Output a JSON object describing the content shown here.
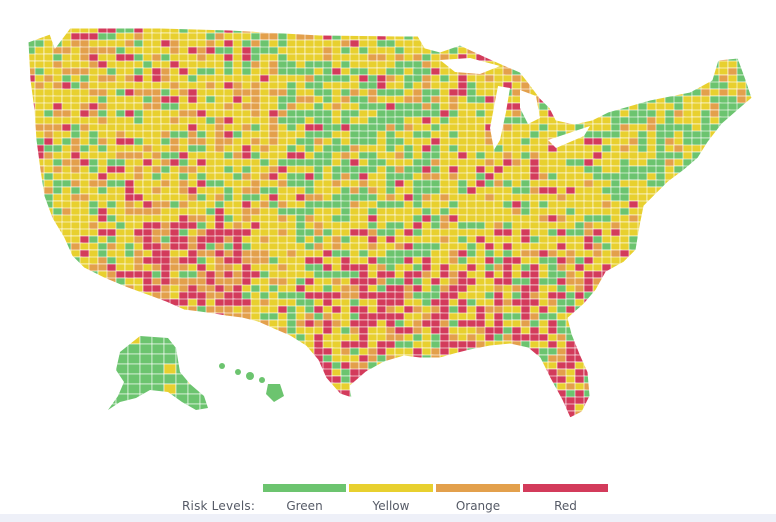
{
  "legend": {
    "title": "Risk Levels:",
    "levels": [
      {
        "label": "Green",
        "color": "#6cc46f"
      },
      {
        "label": "Yellow",
        "color": "#e8d02f"
      },
      {
        "label": "Orange",
        "color": "#e3a04c"
      },
      {
        "label": "Red",
        "color": "#d33b5b"
      }
    ]
  },
  "map": {
    "regions": [
      {
        "name": "contiguous-us",
        "dominant_level": "Yellow"
      },
      {
        "name": "alaska",
        "dominant_level": "Green"
      },
      {
        "name": "hawaii",
        "dominant_level": "Green"
      }
    ]
  }
}
